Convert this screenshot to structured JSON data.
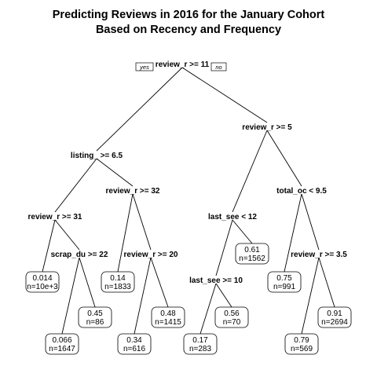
{
  "title": {
    "line1": "Predicting Reviews in 2016 for the January Cohort",
    "line2": "Based on Recency and Frequency"
  },
  "branch_labels": {
    "yes": "yes",
    "no": "no"
  },
  "tree": {
    "split": "review_r >= 11",
    "left": {
      "split": "listing_ >= 6.5",
      "left": {
        "split": "review_r >= 31",
        "left": {
          "value": "0.014",
          "n": "n=10e+3"
        },
        "right": {
          "split": "scrap_du >= 22",
          "left": {
            "value": "0.066",
            "n": "n=1647"
          },
          "right": {
            "value": "0.45",
            "n": "n=86"
          }
        }
      },
      "right": {
        "split": "review_r >= 32",
        "left": {
          "value": "0.14",
          "n": "n=1833"
        },
        "right": {
          "split": "review_r >= 20",
          "left": {
            "value": "0.34",
            "n": "n=616"
          },
          "right": {
            "value": "0.48",
            "n": "n=1415"
          }
        }
      }
    },
    "right": {
      "split": "review_r >= 5",
      "left": {
        "split": "last_see < 12",
        "left": {
          "split": "last_see >= 10",
          "left": {
            "value": "0.17",
            "n": "n=283"
          },
          "right": {
            "value": "0.56",
            "n": "n=70"
          }
        },
        "right": {
          "value": "0.61",
          "n": "n=1562"
        }
      },
      "right": {
        "split": "total_oc < 9.5",
        "left": {
          "value": "0.75",
          "n": "n=991"
        },
        "right": {
          "split": "review_r >= 3.5",
          "left": {
            "value": "0.79",
            "n": "n=569"
          },
          "right": {
            "value": "0.91",
            "n": "n=2694"
          }
        }
      }
    }
  }
}
